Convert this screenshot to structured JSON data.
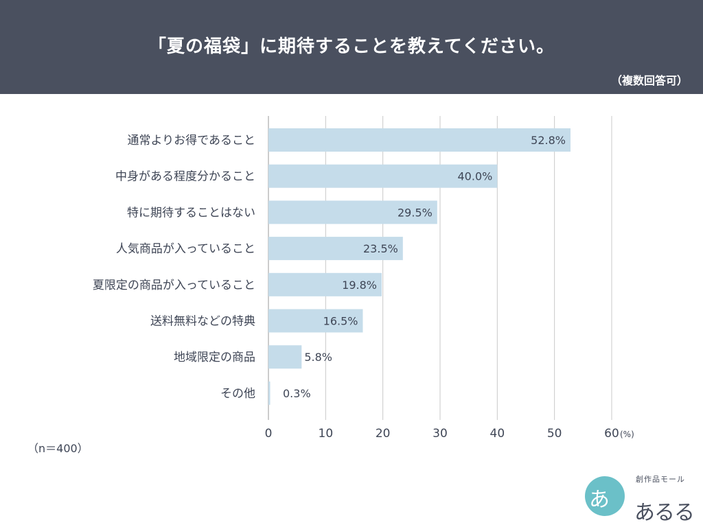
{
  "header": {
    "title": "「夏の福袋」に期待することを教えてください。",
    "subtitle": "（複数回答可）"
  },
  "sample_size": "（n＝400）",
  "logo": {
    "text": "あるる",
    "subtitle": "創作品モール",
    "glyph": "あ"
  },
  "chart_data": {
    "type": "bar",
    "orientation": "horizontal",
    "categories": [
      "通常よりお得であること",
      "中身がある程度分かること",
      "特に期待することはない",
      "人気商品が入っていること",
      "夏限定の商品が入っていること",
      "送料無料などの特典",
      "地域限定の商品",
      "その他"
    ],
    "values": [
      52.8,
      40.0,
      29.5,
      23.5,
      19.8,
      16.5,
      5.8,
      0.3
    ],
    "value_labels": [
      "52.8%",
      "40.0%",
      "29.5%",
      "23.5%",
      "19.8%",
      "16.5%",
      "5.8%",
      "0.3%"
    ],
    "xlim": [
      0,
      60
    ],
    "xticks": [
      0,
      10,
      20,
      30,
      40,
      50,
      60
    ],
    "x_unit": "(%)",
    "grid": true,
    "bar_color": "#c5dcea",
    "grid_color": "#c8c8c8"
  }
}
